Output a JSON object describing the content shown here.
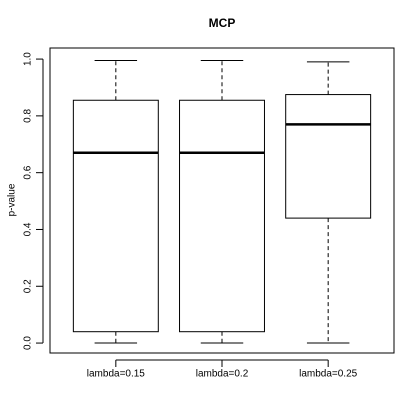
{
  "chart_data": {
    "type": "boxplot",
    "title": "MCP",
    "y_label": "p-value",
    "categories": [
      "lambda=0.15",
      "lambda=0.2",
      "lambda=0.25"
    ],
    "min": [
      0,
      0,
      0
    ],
    "q1": [
      0.04,
      0.04,
      0.44
    ],
    "median": [
      0.67,
      0.67,
      0.77
    ],
    "q3": [
      0.855,
      0.855,
      0.875
    ],
    "max": [
      0.995,
      0.995,
      0.99
    ],
    "ylim": [
      -0.035,
      1.039
    ],
    "yticks": [
      {
        "value": 0,
        "label": "0.0"
      },
      0.2,
      0.4,
      0.6,
      0.8,
      {
        "value": 1,
        "label": "1.0"
      }
    ],
    "color": "#000000"
  }
}
